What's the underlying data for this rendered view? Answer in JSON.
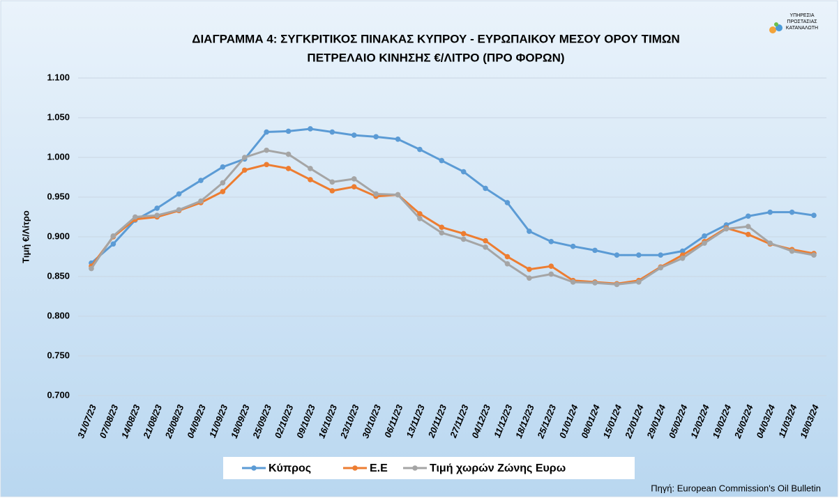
{
  "chart_data": {
    "type": "line",
    "title_lines": [
      "ΔΙΑΓΡΑΜΜΑ 4: ΣΥΓΚΡΙΤΙΚΟΣ ΠΙΝΑΚΑΣ ΚΥΠΡΟΥ - ΕΥΡΩΠΑΙΚΟΥ ΜΕΣΟΥ ΟΡΟΥ ΤΙΜΩΝ",
      "ΠΕΤΡΕΛΑΙΟ ΚΙΝΗΣΗΣ €/ΛΙΤΡΟ (ΠΡΟ ΦΟΡΩΝ)"
    ],
    "y_label": "Τιμή €/Λίτρο",
    "source": "Πηγή: European Commission's Oil Bulletin",
    "logo_text": [
      "ΥΠΗΡΕΣΙΑ",
      "ΠΡΟΣΤΑΣΙΑΣ",
      "ΚΑΤΑΝΑΛΩΤΗ"
    ],
    "categories": [
      "31/07/23",
      "07/08/23",
      "14/08/23",
      "21/08/23",
      "28/08/23",
      "04/09/23",
      "11/09/23",
      "18/09/23",
      "25/09/23",
      "02/10/23",
      "09/10/23",
      "16/10/23",
      "23/10/23",
      "30/10/23",
      "06/11/23",
      "13/11/23",
      "20/11/23",
      "27/11/23",
      "04/12/23",
      "11/12/23",
      "18/12/23",
      "25/12/23",
      "01/01/24",
      "08/01/24",
      "15/01/24",
      "22/01/24",
      "29/01/24",
      "05/02/24",
      "12/02/24",
      "19/02/24",
      "26/02/24",
      "04/03/24",
      "11/03/24",
      "18/03/24"
    ],
    "series": [
      {
        "name": "Κύπρος",
        "color": "#5b9bd5",
        "values": [
          0.867,
          0.891,
          0.921,
          0.936,
          0.954,
          0.971,
          0.988,
          0.998,
          1.032,
          1.033,
          1.036,
          1.032,
          1.028,
          1.026,
          1.023,
          1.01,
          0.996,
          0.982,
          0.961,
          0.943,
          0.907,
          0.894,
          0.888,
          0.883,
          0.877,
          0.877,
          0.877,
          0.882,
          0.901,
          0.915,
          0.926,
          0.931,
          0.931,
          0.927
        ]
      },
      {
        "name": "Ε.Ε",
        "color": "#ed7d31",
        "values": [
          0.863,
          0.9,
          0.922,
          0.925,
          0.933,
          0.943,
          0.957,
          0.984,
          0.991,
          0.986,
          0.972,
          0.958,
          0.963,
          0.951,
          0.953,
          0.929,
          0.912,
          0.904,
          0.895,
          0.875,
          0.859,
          0.863,
          0.845,
          0.843,
          0.841,
          0.845,
          0.862,
          0.877,
          0.894,
          0.911,
          0.903,
          0.891,
          0.884,
          0.879
        ]
      },
      {
        "name": "Τιμή χωρών Ζώνης Ευρω",
        "color": "#a5a5a5",
        "values": [
          0.86,
          0.901,
          0.925,
          0.927,
          0.934,
          0.945,
          0.968,
          1.0,
          1.009,
          1.004,
          0.986,
          0.969,
          0.973,
          0.954,
          0.953,
          0.923,
          0.905,
          0.897,
          0.887,
          0.866,
          0.848,
          0.853,
          0.843,
          0.842,
          0.84,
          0.843,
          0.861,
          0.873,
          0.892,
          0.91,
          0.913,
          0.892,
          0.882,
          0.877
        ]
      }
    ],
    "ylim": [
      0.7,
      1.1
    ],
    "yticks": [
      {
        "value": 0.7,
        "label": "0.700"
      },
      {
        "value": 0.75,
        "label": "0.750"
      },
      {
        "value": 0.8,
        "label": "0.800"
      },
      {
        "value": 0.85,
        "label": "0.850"
      },
      {
        "value": 0.9,
        "label": "0.900"
      },
      {
        "value": 0.95,
        "label": "0.950"
      },
      {
        "value": 1.0,
        "label": "1.000"
      },
      {
        "value": 1.05,
        "label": "1.050"
      },
      {
        "value": 1.1,
        "label": "1.100"
      }
    ],
    "grid": true,
    "legend": "bottom"
  }
}
